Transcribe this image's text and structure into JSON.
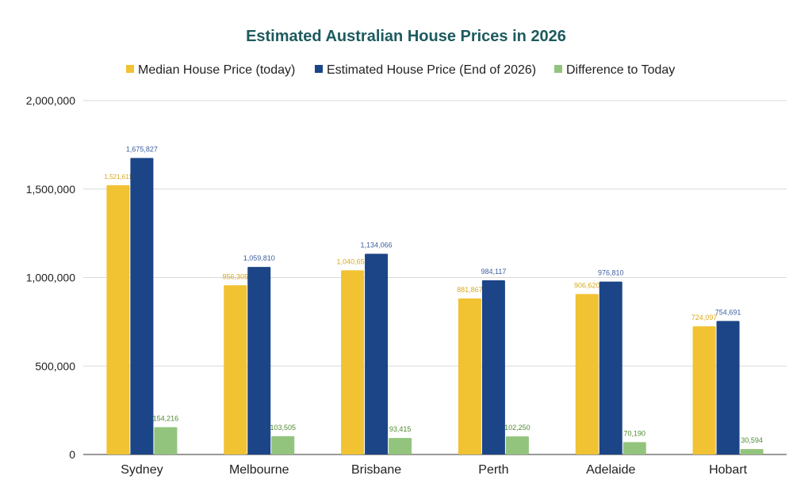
{
  "chart_data": {
    "type": "bar",
    "title": "Estimated Australian House Prices in 2026",
    "xlabel": "",
    "ylabel": "",
    "categories": [
      "Sydney",
      "Melbourne",
      "Brisbane",
      "Perth",
      "Adelaide",
      "Hobart"
    ],
    "series": [
      {
        "name": "Median House Price (today)",
        "color": "#f1c232",
        "label_color": "#d9a91d",
        "values": [
          1521611,
          956305,
          1040651,
          881867,
          906620,
          724097
        ],
        "labels": [
          "1,521,611",
          "956,305",
          "1,040,651",
          "881,867",
          "906,620",
          "724,097"
        ]
      },
      {
        "name": "Estimated House Price (End of 2026)",
        "color": "#1c4587",
        "label_color": "#3d5f9e",
        "values": [
          1675827,
          1059810,
          1134066,
          984117,
          976810,
          754691
        ],
        "labels": [
          "1,675,827",
          "1,059,810",
          "1,134,066",
          "984,117",
          "976,810",
          "754,691"
        ]
      },
      {
        "name": "Difference to Today",
        "color": "#93c47d",
        "label_color": "#4f8a2f",
        "values": [
          154216,
          103505,
          93415,
          102250,
          70190,
          30594
        ],
        "labels": [
          "154,216",
          "103,505",
          "93,415",
          "102,250",
          "70,190",
          "30,594"
        ]
      }
    ],
    "ylim": [
      0,
      2000000
    ],
    "yticks": [
      0,
      500000,
      1000000,
      1500000,
      2000000
    ],
    "ytick_labels": [
      "0",
      "500,000",
      "1,000,000",
      "1,500,000",
      "2,000,000"
    ],
    "grid": true,
    "legend_position": "top",
    "title_color": "#1d5a5e"
  }
}
